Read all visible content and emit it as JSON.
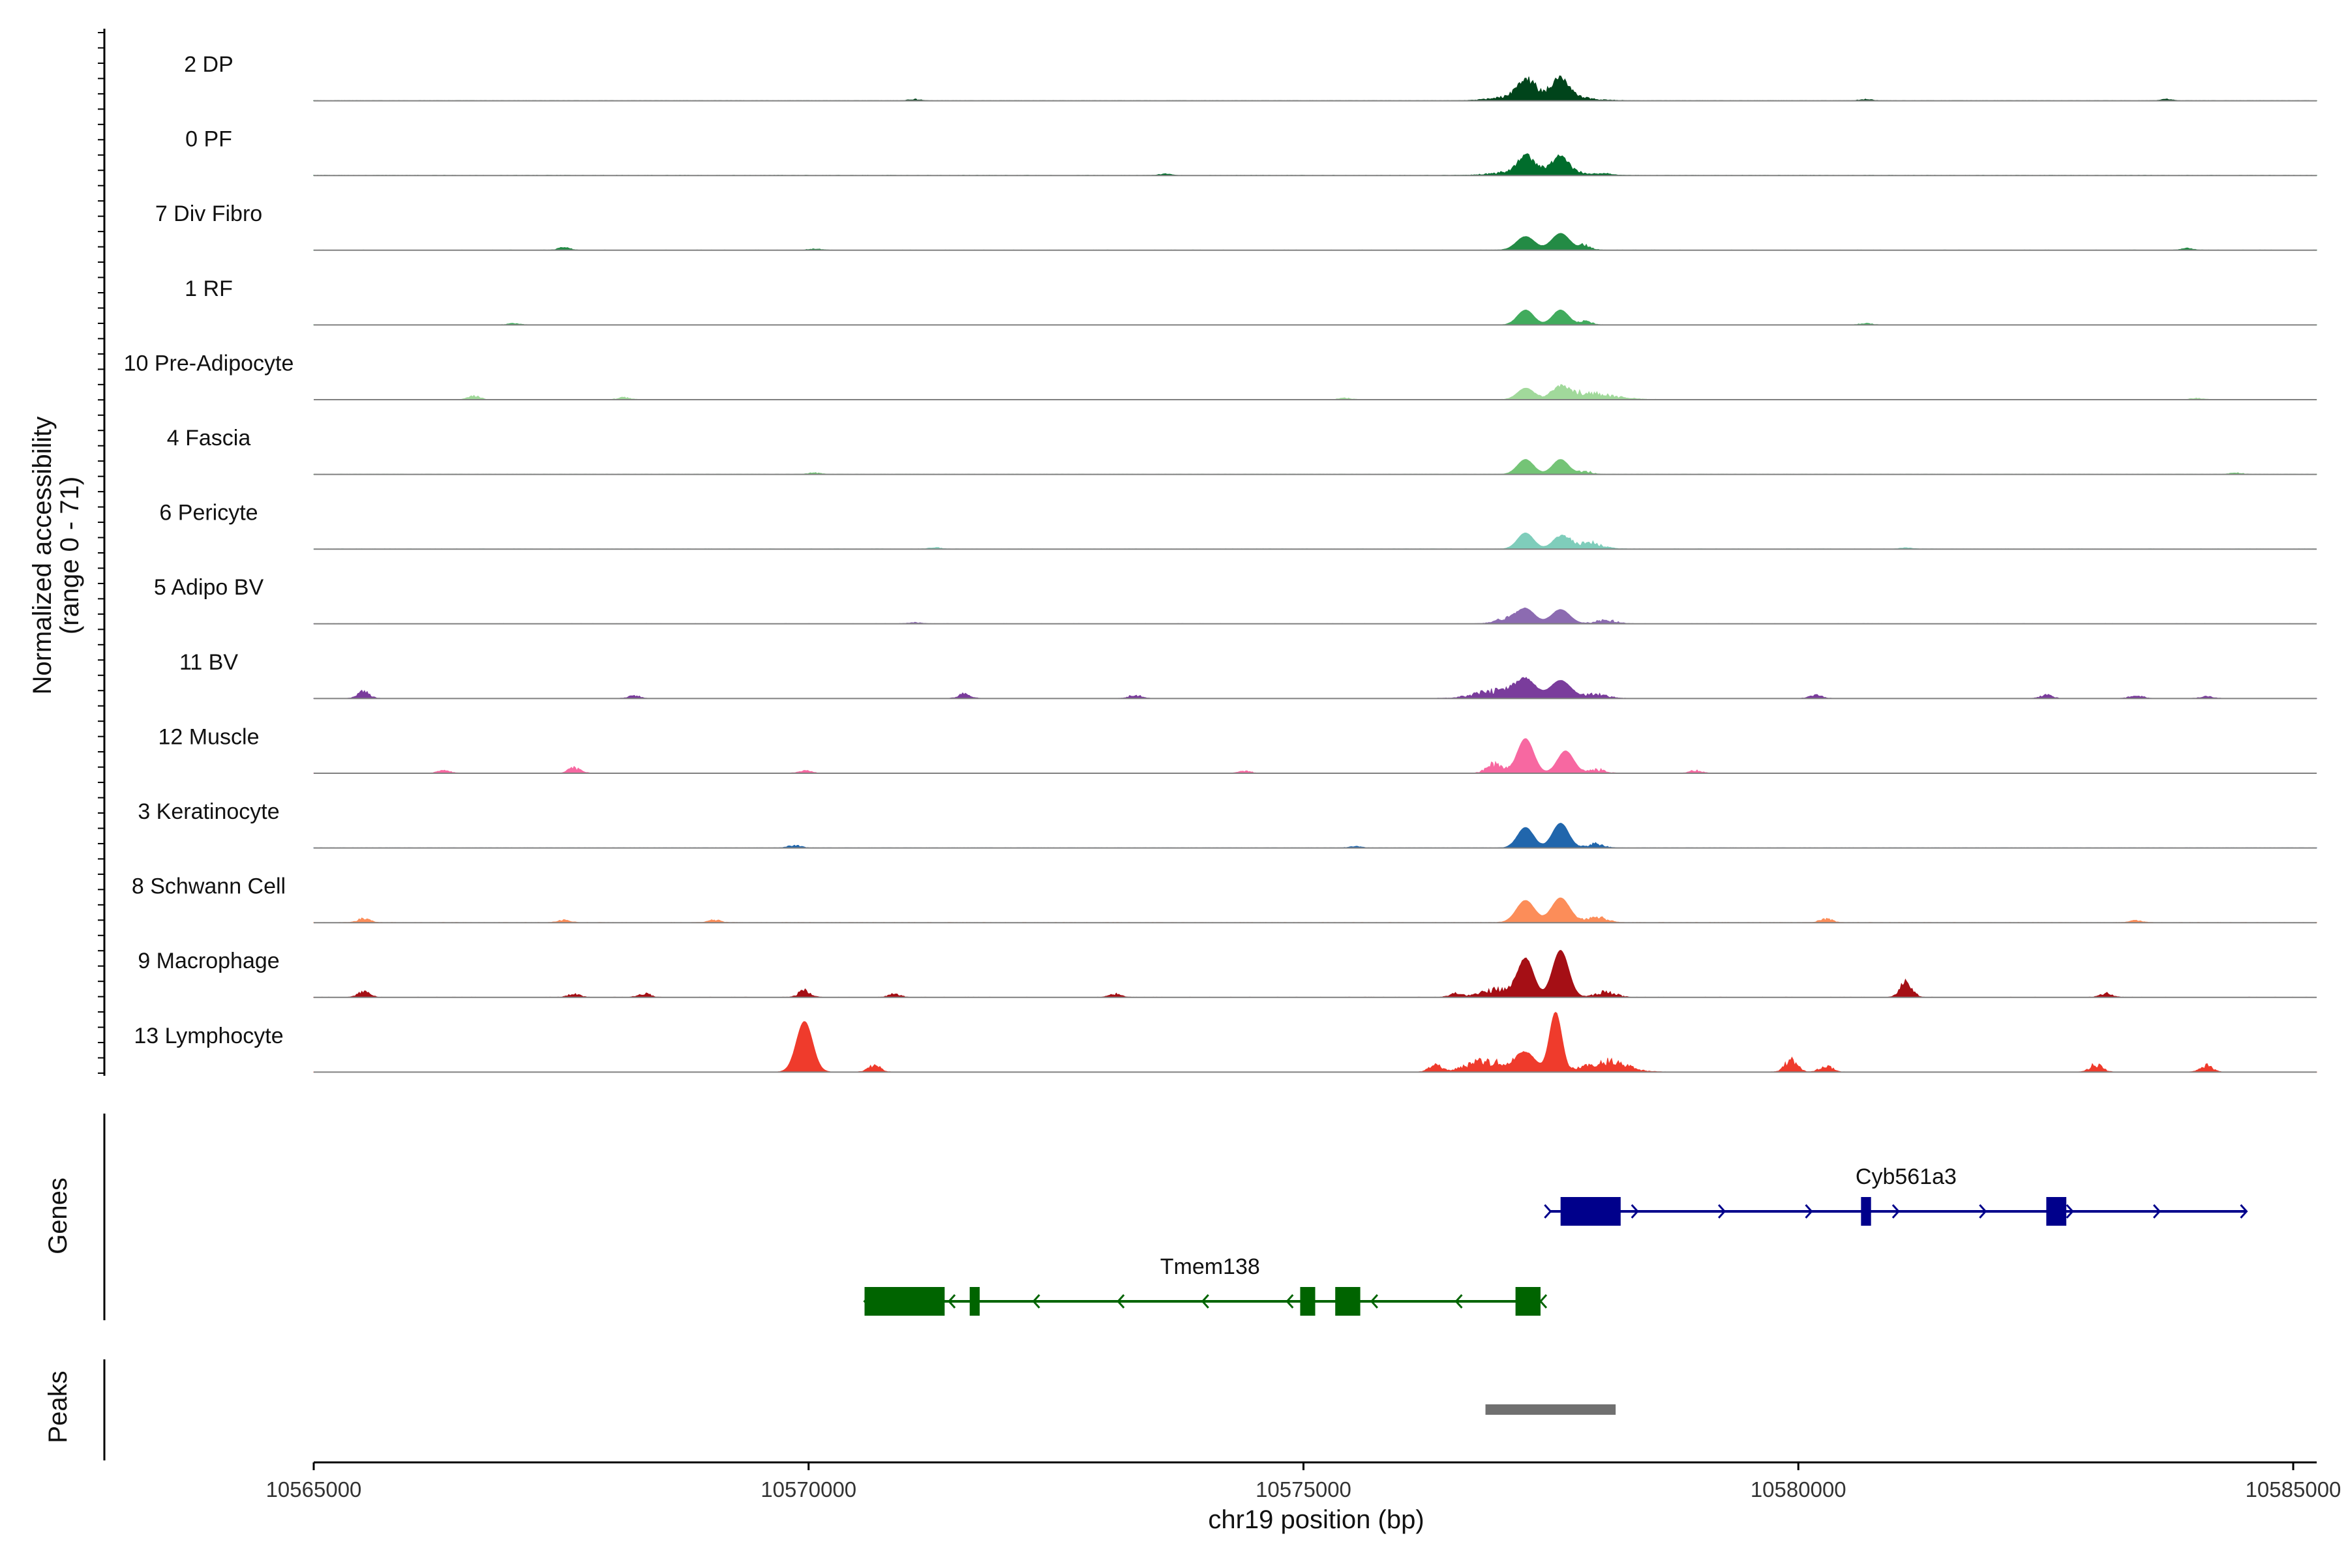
{
  "chart_data": {
    "type": "area",
    "title": "",
    "y_axis_label_line1": "Normalized accessibility",
    "y_axis_label_line2": "(range 0 - 71)",
    "xlabel": "chr19 position (bp)",
    "xlim": [
      10565000,
      10585000
    ],
    "ylim": [
      0,
      71
    ],
    "x_ticks": [
      "10565000",
      "10570000",
      "10575000",
      "10580000",
      "10585000"
    ],
    "tracks": [
      {
        "name": "2 DP",
        "color": "#00441b",
        "peaks": [
          [
            10577100,
            0.24,
            80
          ],
          [
            10577450,
            0.27,
            80
          ]
        ],
        "spikes": [
          [
            10577250,
            0.12,
            300
          ]
        ],
        "noise": [
          [
            10571000,
            0.02
          ],
          [
            10580500,
            0.02
          ],
          [
            10583500,
            0.02
          ]
        ]
      },
      {
        "name": "0 PF",
        "color": "#006d2c",
        "peaks": [
          [
            10577100,
            0.23,
            80
          ],
          [
            10577450,
            0.22,
            80
          ]
        ],
        "spikes": [
          [
            10577250,
            0.1,
            300
          ]
        ],
        "noise": [
          [
            10573500,
            0.02
          ],
          [
            10577900,
            0.02
          ]
        ]
      },
      {
        "name": "7 Div Fibro",
        "color": "#238b45",
        "peaks": [
          [
            10577100,
            0.22,
            90
          ],
          [
            10577450,
            0.27,
            90
          ]
        ],
        "spikes": [
          [
            10577700,
            0.08,
            60
          ]
        ],
        "noise": [
          [
            10567500,
            0.04
          ],
          [
            10570000,
            0.02
          ],
          [
            10583700,
            0.03
          ]
        ]
      },
      {
        "name": "1 RF",
        "color": "#41ab5d",
        "peaks": [
          [
            10577100,
            0.24,
            80
          ],
          [
            10577450,
            0.24,
            80
          ]
        ],
        "spikes": [
          [
            10577700,
            0.05,
            60
          ]
        ],
        "noise": [
          [
            10567000,
            0.02
          ],
          [
            10580500,
            0.02
          ]
        ]
      },
      {
        "name": "10 Pre-Adipocyte",
        "color": "#a1d99b",
        "peaks": [
          [
            10577100,
            0.18,
            80
          ],
          [
            10577450,
            0.16,
            80
          ]
        ],
        "spikes": [
          [
            10577700,
            0.1,
            250
          ]
        ],
        "noise": [
          [
            10566600,
            0.06
          ],
          [
            10568100,
            0.03
          ],
          [
            10575300,
            0.02
          ],
          [
            10583800,
            0.02
          ]
        ]
      },
      {
        "name": "4 Fascia",
        "color": "#74c476",
        "peaks": [
          [
            10577100,
            0.24,
            80
          ],
          [
            10577450,
            0.24,
            80
          ]
        ],
        "spikes": [
          [
            10577700,
            0.05,
            60
          ]
        ],
        "noise": [
          [
            10570000,
            0.02
          ],
          [
            10584200,
            0.02
          ]
        ]
      },
      {
        "name": "6 Pericyte",
        "color": "#7fcdbb",
        "peaks": [
          [
            10577100,
            0.26,
            80
          ],
          [
            10577450,
            0.19,
            80
          ]
        ],
        "spikes": [
          [
            10577700,
            0.1,
            150
          ]
        ],
        "noise": [
          [
            10571200,
            0.02
          ],
          [
            10580900,
            0.02
          ]
        ]
      },
      {
        "name": "5 Adipo BV",
        "color": "#8c6bb1",
        "peaks": [
          [
            10577100,
            0.24,
            90
          ],
          [
            10577450,
            0.23,
            90
          ]
        ],
        "spikes": [
          [
            10576900,
            0.08,
            100
          ],
          [
            10577900,
            0.06,
            100
          ]
        ],
        "noise": [
          [
            10571000,
            0.02
          ]
        ]
      },
      {
        "name": "11 BV",
        "color": "#7a3c9c",
        "peaks": [
          [
            10577100,
            0.29,
            100
          ],
          [
            10577450,
            0.29,
            100
          ]
        ],
        "spikes": [
          [
            10576800,
            0.12,
            200
          ],
          [
            10577800,
            0.06,
            120
          ]
        ],
        "noise": [
          [
            10565500,
            0.1
          ],
          [
            10568200,
            0.04
          ],
          [
            10571500,
            0.07
          ],
          [
            10573200,
            0.05
          ],
          [
            10580000,
            0.05
          ],
          [
            10582300,
            0.05
          ],
          [
            10583200,
            0.05
          ],
          [
            10583900,
            0.03
          ]
        ]
      },
      {
        "name": "12 Muscle",
        "color": "#f768a1",
        "peaks": [
          [
            10577100,
            0.56,
            80
          ],
          [
            10577500,
            0.36,
            80
          ]
        ],
        "spikes": [
          [
            10576800,
            0.14,
            80
          ],
          [
            10577800,
            0.06,
            80
          ]
        ],
        "noise": [
          [
            10566300,
            0.04
          ],
          [
            10567600,
            0.08
          ],
          [
            10569900,
            0.04
          ],
          [
            10574300,
            0.03
          ],
          [
            10578800,
            0.04
          ]
        ]
      },
      {
        "name": "3 Keratinocyte",
        "color": "#2166ac",
        "peaks": [
          [
            10577100,
            0.33,
            80
          ],
          [
            10577450,
            0.4,
            80
          ]
        ],
        "spikes": [
          [
            10577800,
            0.06,
            80
          ]
        ],
        "noise": [
          [
            10569800,
            0.04
          ],
          [
            10575400,
            0.02
          ]
        ]
      },
      {
        "name": "8 Schwann Cell",
        "color": "#fc8d59",
        "peaks": [
          [
            10577100,
            0.36,
            90
          ],
          [
            10577450,
            0.4,
            90
          ]
        ],
        "spikes": [
          [
            10577800,
            0.08,
            100
          ]
        ],
        "noise": [
          [
            10565500,
            0.06
          ],
          [
            10567500,
            0.04
          ],
          [
            10569000,
            0.04
          ],
          [
            10580100,
            0.06
          ],
          [
            10583200,
            0.03
          ]
        ]
      },
      {
        "name": "9 Macrophage",
        "color": "#a50f15",
        "peaks": [
          [
            10577100,
            0.62,
            80
          ],
          [
            10577450,
            0.76,
            80
          ]
        ],
        "spikes": [
          [
            10576800,
            0.12,
            150
          ],
          [
            10577900,
            0.08,
            100
          ]
        ],
        "noise": [
          [
            10565500,
            0.08
          ],
          [
            10567600,
            0.05
          ],
          [
            10568300,
            0.06
          ],
          [
            10569900,
            0.1
          ],
          [
            10570800,
            0.05
          ],
          [
            10573000,
            0.05
          ],
          [
            10576400,
            0.06
          ],
          [
            10580900,
            0.24
          ],
          [
            10582900,
            0.06
          ]
        ]
      },
      {
        "name": "13 Lymphocyte",
        "color": "#ef3b2c",
        "peaks": [
          [
            10569900,
            0.82,
            80
          ],
          [
            10577400,
            0.96,
            60
          ],
          [
            10577100,
            0.3,
            100
          ]
        ],
        "spikes": [
          [
            10576700,
            0.16,
            200
          ],
          [
            10577900,
            0.16,
            200
          ]
        ],
        "noise": [
          [
            10570600,
            0.1
          ],
          [
            10576200,
            0.1
          ],
          [
            10579750,
            0.2
          ],
          [
            10580100,
            0.1
          ],
          [
            10582800,
            0.12
          ],
          [
            10583900,
            0.1
          ]
        ]
      }
    ],
    "genes_label": "Genes",
    "genes": [
      {
        "name": "Cyb561a3",
        "strand": "+",
        "color": "#00008b",
        "start": 10577350,
        "end": 10584300,
        "exons": [
          [
            10577450,
            10578050
          ],
          [
            10580450,
            10580550
          ],
          [
            10582300,
            10582500
          ]
        ]
      },
      {
        "name": "Tmem138",
        "strand": "-",
        "color": "#006400",
        "start": 10570500,
        "end": 10577250,
        "exons": [
          [
            10570500,
            10571300
          ],
          [
            10571550,
            10571650
          ],
          [
            10574850,
            10575000
          ],
          [
            10575200,
            10575450
          ],
          [
            10577000,
            10577250
          ]
        ]
      }
    ],
    "peaks_label": "Peaks",
    "peak_regions": [
      [
        10576700,
        10578000
      ]
    ]
  }
}
